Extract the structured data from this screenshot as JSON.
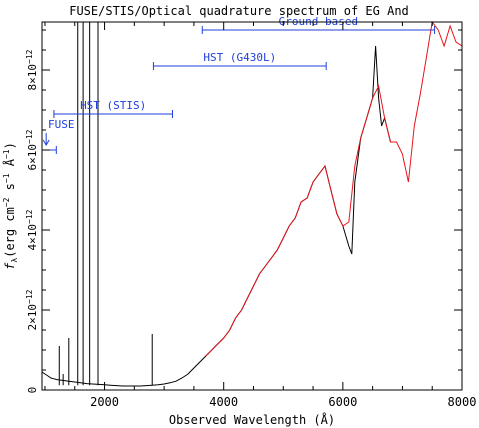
{
  "chart_data": {
    "type": "line",
    "title": "FUSE/STIS/Optical quadrature spectrum of EG And",
    "xlabel": "Observed Wavelength (Å)",
    "ylabel": {
      "main": "f",
      "sub": "λ",
      "units": "(erg cm",
      "exp1": "−2",
      "mid": " s",
      "exp2": "−1",
      "ang": " Å",
      "exp3": "−1",
      "close": ")"
    },
    "xlim": [
      950,
      8000
    ],
    "ylim": [
      0,
      9.2e-12
    ],
    "x_ticks": [
      {
        "value": 2000,
        "label": "2000"
      },
      {
        "value": 4000,
        "label": "4000"
      },
      {
        "value": 6000,
        "label": "6000"
      },
      {
        "value": 8000,
        "label": "8000"
      }
    ],
    "y_ticks": [
      {
        "value": 0,
        "label": "0",
        "exp": ""
      },
      {
        "value": 2e-12,
        "label": "2×10",
        "exp": "−12"
      },
      {
        "value": 4e-12,
        "label": "4×10",
        "exp": "−12"
      },
      {
        "value": 6e-12,
        "label": "6×10",
        "exp": "−12"
      },
      {
        "value": 8e-12,
        "label": "8×10",
        "exp": "−12"
      }
    ],
    "coverage_ranges": [
      {
        "label": "FUSE",
        "x": [
          950,
          1190
        ],
        "y": 6e-12,
        "arrow": true
      },
      {
        "label": "HST (STIS)",
        "x": [
          1150,
          3140
        ],
        "y": 6.9e-12
      },
      {
        "label": "HST (G430L)",
        "x": [
          2820,
          5720
        ],
        "y": 8.1e-12
      },
      {
        "label": "Ground-based",
        "x": [
          3640,
          7540
        ],
        "y": 9e-12
      }
    ],
    "series": [
      {
        "color": "#000000",
        "x": [
          950,
          1000,
          1050,
          1100,
          1150,
          1200,
          1300,
          1400,
          1500,
          1600,
          1700,
          1800,
          1900,
          2000,
          2100,
          2200,
          2300,
          2400,
          2500,
          2600,
          2700,
          2800,
          2900,
          3000,
          3100,
          3200,
          3300,
          3400,
          3500,
          3600,
          3700,
          3800,
          3900,
          4000,
          4100,
          4200,
          4300,
          4400,
          4500,
          4600,
          4700,
          4800,
          4900,
          5000,
          5100,
          5200,
          5300,
          5400,
          5500,
          5600,
          5700,
          5800,
          5900,
          6000,
          6100,
          6150,
          6200,
          6300,
          6400,
          6500,
          6550,
          6600,
          6650,
          6700,
          6800,
          6900
        ],
        "y": [
          4.5e-13,
          4e-13,
          3.5e-13,
          3e-13,
          2.8e-13,
          2.6e-13,
          2.4e-13,
          2.2e-13,
          2e-13,
          1.8e-13,
          1.6e-13,
          1.5e-13,
          1.4e-13,
          1.3e-13,
          1.2e-13,
          1.1e-13,
          1e-13,
          1e-13,
          1e-13,
          1e-13,
          1.1e-13,
          1.2e-13,
          1.3e-13,
          1.5e-13,
          1.8e-13,
          2.2e-13,
          3e-13,
          4e-13,
          5.5e-13,
          7e-13,
          8.5e-13,
          1e-12,
          1.15e-12,
          1.3e-12,
          1.5e-12,
          1.8e-12,
          2e-12,
          2.3e-12,
          2.6e-12,
          2.9e-12,
          3.1e-12,
          3.3e-12,
          3.5e-12,
          3.8e-12,
          4.1e-12,
          4.3e-12,
          4.7e-12,
          4.8e-12,
          5.2e-12,
          5.4e-12,
          5.6e-12,
          5e-12,
          4.4e-12,
          4.1e-12,
          3.6e-12,
          3.4e-12,
          5.2e-12,
          6.3e-12,
          6.8e-12,
          7.3e-12,
          8.6e-12,
          7.3e-12,
          6.6e-12,
          6.8e-12,
          6.2e-12,
          6.2e-12
        ]
      },
      {
        "color": "#e8141e",
        "x": [
          3700,
          3800,
          3900,
          4000,
          4100,
          4200,
          4300,
          4400,
          4500,
          4600,
          4700,
          4800,
          4900,
          5000,
          5100,
          5200,
          5300,
          5400,
          5500,
          5600,
          5700,
          5800,
          5900,
          6000,
          6100,
          6200,
          6300,
          6400,
          6500,
          6600,
          6700,
          6800,
          6900,
          7000,
          7100,
          7200,
          7300,
          7400,
          7500,
          7600,
          7700,
          7800,
          7900,
          8000
        ],
        "y": [
          8.5e-13,
          1e-12,
          1.15e-12,
          1.3e-12,
          1.5e-12,
          1.8e-12,
          2e-12,
          2.3e-12,
          2.6e-12,
          2.9e-12,
          3.1e-12,
          3.3e-12,
          3.5e-12,
          3.8e-12,
          4.1e-12,
          4.3e-12,
          4.7e-12,
          4.8e-12,
          5.2e-12,
          5.4e-12,
          5.6e-12,
          5e-12,
          4.4e-12,
          4.1e-12,
          4.2e-12,
          5.6e-12,
          6.3e-12,
          6.8e-12,
          7.3e-12,
          7.6e-12,
          6.8e-12,
          6.2e-12,
          6.2e-12,
          5.9e-12,
          5.2e-12,
          6.6e-12,
          7.4e-12,
          8.3e-12,
          9.2e-12,
          9e-12,
          8.6e-12,
          9.1e-12,
          8.7e-12,
          8.6e-12
        ]
      }
    ],
    "emission_lines": [
      {
        "x": 1240,
        "y": 1.1e-12
      },
      {
        "x": 1305,
        "y": 4e-13
      },
      {
        "x": 1400,
        "y": 1.3e-12
      },
      {
        "x": 1550,
        "y": 9.2e-12
      },
      {
        "x": 1640,
        "y": 9.2e-12
      },
      {
        "x": 1750,
        "y": 9.2e-12
      },
      {
        "x": 1890,
        "y": 9.2e-12
      },
      {
        "x": 2800,
        "y": 1.4e-12
      }
    ]
  }
}
